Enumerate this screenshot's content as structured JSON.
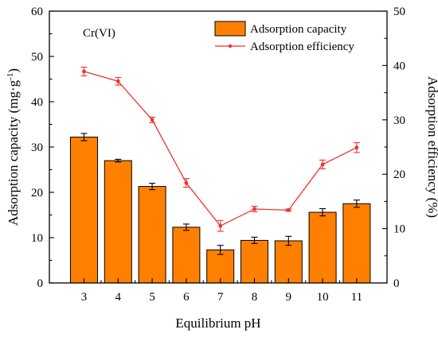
{
  "chart_data": {
    "type": "bar+line",
    "annotation": "Cr(VI)",
    "xlabel": "Equilibrium pH",
    "ylabel_left_main": "Adsorption capacity (mg·g",
    "ylabel_left_sup": "-1",
    "ylabel_left_end": ")",
    "ylabel_right": "Adsorption efficiency (%)",
    "categories": [
      "3",
      "4",
      "5",
      "6",
      "7",
      "8",
      "9",
      "10",
      "11"
    ],
    "ylim_left": [
      0,
      60
    ],
    "ylim_right": [
      0,
      50
    ],
    "yticks_left": [
      "0",
      "10",
      "20",
      "30",
      "40",
      "50",
      "60"
    ],
    "yticks_right": [
      "0",
      "10",
      "20",
      "30",
      "40",
      "50"
    ],
    "legend_position": "top-right",
    "series": [
      {
        "name": "Adsorption capacity",
        "type": "bar",
        "axis": "left",
        "color": "#ff8000",
        "values": [
          32.2,
          27.0,
          21.3,
          12.3,
          7.3,
          9.4,
          9.3,
          15.6,
          17.5
        ],
        "errors": [
          0.8,
          0.3,
          0.7,
          0.7,
          1.0,
          0.7,
          1.0,
          0.8,
          0.8
        ]
      },
      {
        "name": "Adsorption efficiency",
        "type": "line",
        "axis": "right",
        "color": "#ee3333",
        "values": [
          38.9,
          37.1,
          30.0,
          18.4,
          10.5,
          13.6,
          13.4,
          21.8,
          24.9
        ],
        "errors": [
          0.8,
          0.7,
          0.5,
          0.8,
          1.0,
          0.5,
          0.2,
          0.8,
          0.9
        ]
      }
    ]
  }
}
